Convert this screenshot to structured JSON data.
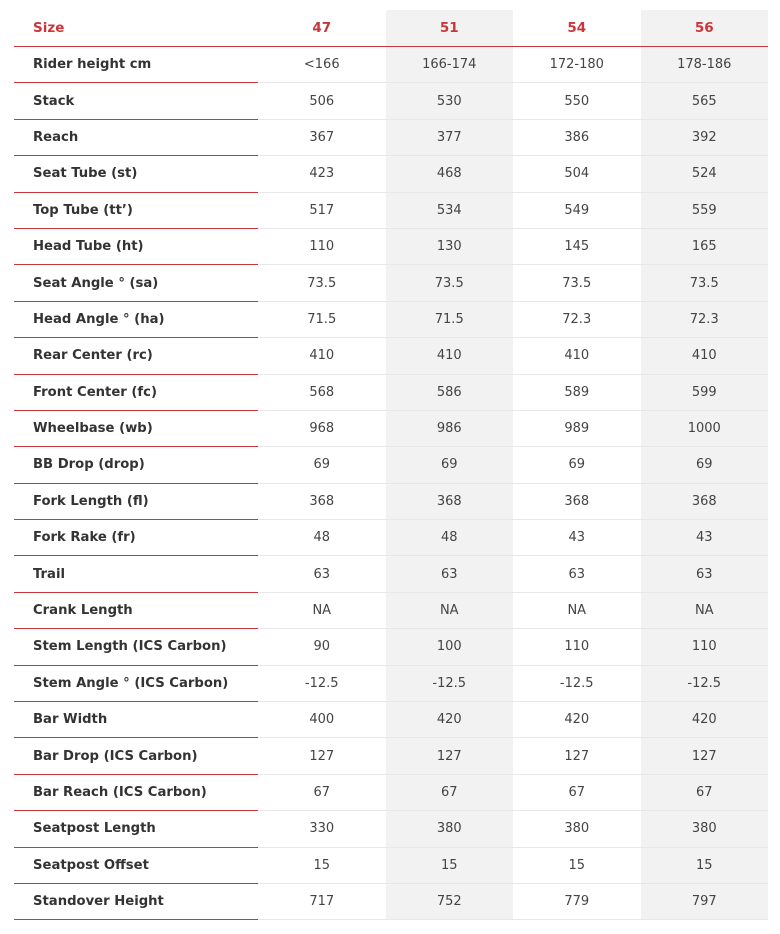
{
  "table": {
    "header_label": "Size",
    "sizes": [
      "47",
      "51",
      "54",
      "56"
    ],
    "rows": [
      {
        "label": "Rider height cm",
        "values": [
          "<166",
          "166-174",
          "172-180",
          "178-186"
        ]
      },
      {
        "label": "Stack",
        "values": [
          "506",
          "530",
          "550",
          "565"
        ]
      },
      {
        "label": "Reach",
        "values": [
          "367",
          "377",
          "386",
          "392"
        ]
      },
      {
        "label": "Seat Tube (st)",
        "values": [
          "423",
          "468",
          "504",
          "524"
        ]
      },
      {
        "label": "Top Tube (tt’)",
        "values": [
          "517",
          "534",
          "549",
          "559"
        ]
      },
      {
        "label": "Head Tube (ht)",
        "values": [
          "110",
          "130",
          "145",
          "165"
        ]
      },
      {
        "label": "Seat Angle ° (sa)",
        "values": [
          "73.5",
          "73.5",
          "73.5",
          "73.5"
        ]
      },
      {
        "label": "Head Angle ° (ha)",
        "values": [
          "71.5",
          "71.5",
          "72.3",
          "72.3"
        ]
      },
      {
        "label": "Rear Center (rc)",
        "values": [
          "410",
          "410",
          "410",
          "410"
        ]
      },
      {
        "label": "Front Center (fc)",
        "values": [
          "568",
          "586",
          "589",
          "599"
        ]
      },
      {
        "label": "Wheelbase (wb)",
        "values": [
          "968",
          "986",
          "989",
          "1000"
        ]
      },
      {
        "label": "BB Drop (drop)",
        "values": [
          "69",
          "69",
          "69",
          "69"
        ]
      },
      {
        "label": "Fork Length (fl)",
        "values": [
          "368",
          "368",
          "368",
          "368"
        ]
      },
      {
        "label": "Fork Rake (fr)",
        "values": [
          "48",
          "48",
          "43",
          "43"
        ]
      },
      {
        "label": "Trail",
        "values": [
          "63",
          "63",
          "63",
          "63"
        ]
      },
      {
        "label": "Crank Length",
        "values": [
          "NA",
          "NA",
          "NA",
          "NA"
        ]
      },
      {
        "label": "Stem Length (ICS Carbon)",
        "values": [
          "90",
          "100",
          "110",
          "110"
        ]
      },
      {
        "label": "Stem Angle ° (ICS Carbon)",
        "values": [
          "-12.5",
          "-12.5",
          "-12.5",
          "-12.5"
        ]
      },
      {
        "label": "Bar Width",
        "values": [
          "400",
          "420",
          "420",
          "420"
        ]
      },
      {
        "label": "Bar Drop (ICS Carbon)",
        "values": [
          "127",
          "127",
          "127",
          "127"
        ]
      },
      {
        "label": "Bar Reach (ICS Carbon)",
        "values": [
          "67",
          "67",
          "67",
          "67"
        ]
      },
      {
        "label": "Seatpost Length",
        "values": [
          "330",
          "380",
          "380",
          "380"
        ]
      },
      {
        "label": "Seatpost Offset",
        "values": [
          "15",
          "15",
          "15",
          "15"
        ]
      },
      {
        "label": "Standover Height",
        "values": [
          "717",
          "752",
          "779",
          "797"
        ]
      }
    ]
  },
  "colors": {
    "accent": "#c9363d",
    "label_text": "#333333",
    "value_text": "#444444",
    "shaded_column": "#f2f2f2"
  }
}
